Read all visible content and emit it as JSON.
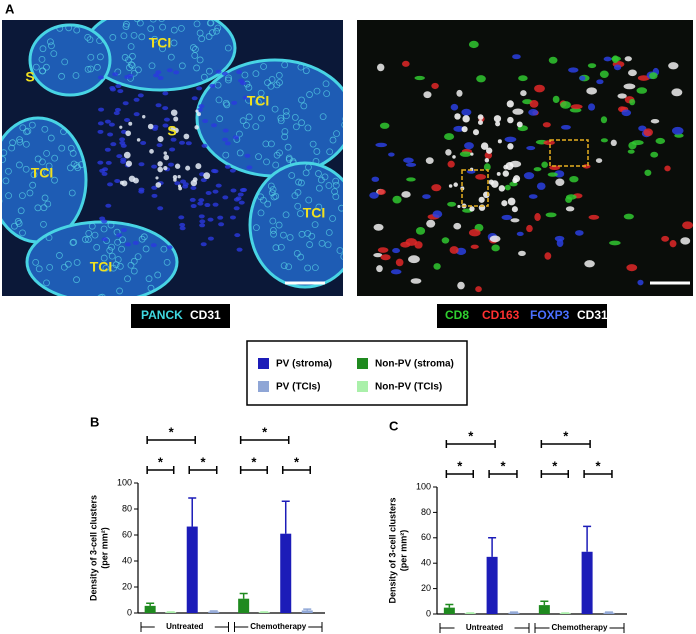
{
  "panel_a": {
    "label": "A",
    "left": {
      "labels": [
        "TCI",
        "S",
        "TCI",
        "S",
        "TCI",
        "TCI",
        "TCI"
      ],
      "stains": [
        "PANCK",
        "CD31"
      ]
    },
    "right": {
      "stains": [
        "CD8",
        "CD163",
        "FOXP3",
        "CD31"
      ]
    }
  },
  "chart_data": [
    {
      "type": "bar",
      "panel": "B",
      "y_label": "Density of 3-cell clusters",
      "y_label_unit": "(per mm²)",
      "categories": [
        "Untreated",
        "Chemotherapy"
      ],
      "ylim": [
        0,
        100
      ],
      "yticks": [
        0,
        20,
        40,
        60,
        80,
        100
      ],
      "series": [
        {
          "name": "PV (stroma)",
          "color": "#1c1cb8",
          "values": [
            66.5,
            61
          ],
          "errors": [
            22,
            25
          ]
        },
        {
          "name": "Non-PV (stroma)",
          "color": "#1f8a1f",
          "values": [
            5.5,
            11
          ],
          "errors": [
            2,
            4
          ]
        },
        {
          "name": "PV (TCIs)",
          "color": "#8fa6d6",
          "values": [
            1,
            2
          ],
          "errors": [
            0.5,
            1
          ]
        },
        {
          "name": "Non-PV (TCIs)",
          "color": "#aaf0aa",
          "values": [
            0.5,
            0.5
          ],
          "errors": [
            0.3,
            0.3
          ]
        }
      ],
      "annotations": [
        {
          "text": "*",
          "category": 0,
          "series": [
            1,
            0
          ]
        },
        {
          "text": "*",
          "category": 0,
          "series": [
            1,
            3
          ]
        },
        {
          "text": "*",
          "category": 0,
          "series": [
            0,
            2
          ]
        },
        {
          "text": "*",
          "category": 1,
          "series": [
            1,
            0
          ]
        },
        {
          "text": "*",
          "category": 1,
          "series": [
            1,
            3
          ]
        },
        {
          "text": "*",
          "category": 1,
          "series": [
            0,
            2
          ]
        }
      ]
    },
    {
      "type": "bar",
      "panel": "C",
      "y_label": "Density of 3-cell clusters",
      "y_label_unit": "(per mm²)",
      "categories": [
        "Untreated",
        "Chemotherapy"
      ],
      "ylim": [
        0,
        100
      ],
      "yticks": [
        0,
        20,
        40,
        60,
        80,
        100
      ],
      "series": [
        {
          "name": "PV (stroma)",
          "color": "#1c1cb8",
          "values": [
            45,
            49
          ],
          "errors": [
            15,
            20
          ]
        },
        {
          "name": "Non-PV (stroma)",
          "color": "#1f8a1f",
          "values": [
            5,
            7
          ],
          "errors": [
            2.5,
            3
          ]
        },
        {
          "name": "PV (TCIs)",
          "color": "#8fa6d6",
          "values": [
            1,
            1
          ],
          "errors": [
            0.5,
            0.5
          ]
        },
        {
          "name": "Non-PV (TCIs)",
          "color": "#aaf0aa",
          "values": [
            0.5,
            0.5
          ],
          "errors": [
            0.3,
            0.3
          ]
        }
      ],
      "annotations": [
        {
          "text": "*",
          "category": 0,
          "series": [
            1,
            0
          ]
        },
        {
          "text": "*",
          "category": 0,
          "series": [
            1,
            3
          ]
        },
        {
          "text": "*",
          "category": 0,
          "series": [
            0,
            2
          ]
        },
        {
          "text": "*",
          "category": 1,
          "series": [
            1,
            0
          ]
        },
        {
          "text": "*",
          "category": 1,
          "series": [
            1,
            3
          ]
        },
        {
          "text": "*",
          "category": 1,
          "series": [
            0,
            2
          ]
        }
      ]
    }
  ]
}
